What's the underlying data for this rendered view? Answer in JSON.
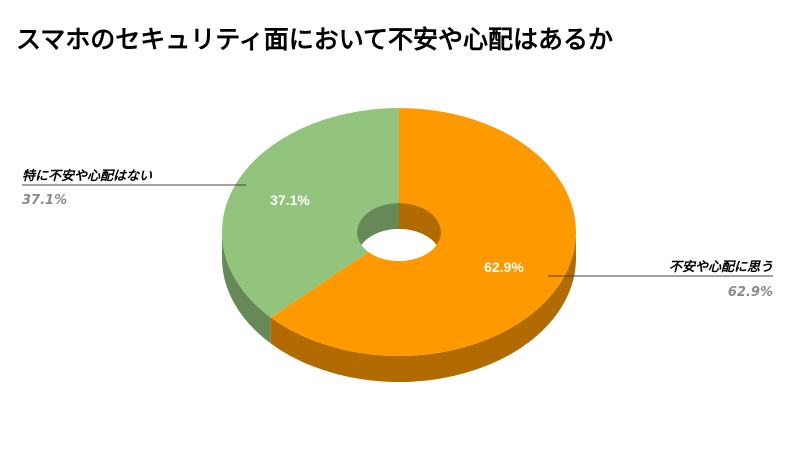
{
  "chart_data": {
    "type": "pie",
    "style": "3d-doughnut",
    "title": "スマホのセキュリティ面において不安や心配はあるか",
    "slices": [
      {
        "label": "不安や心配に思う",
        "value": 62.9,
        "value_label": "62.9%",
        "color": "#ff9900",
        "side_color": "#b26b00"
      },
      {
        "label": "特に不安や心配はない",
        "value": 37.1,
        "value_label": "37.1%",
        "color": "#93c47d",
        "side_color": "#678957"
      }
    ],
    "legend": "none",
    "data_labels": "inside-and-callout"
  }
}
